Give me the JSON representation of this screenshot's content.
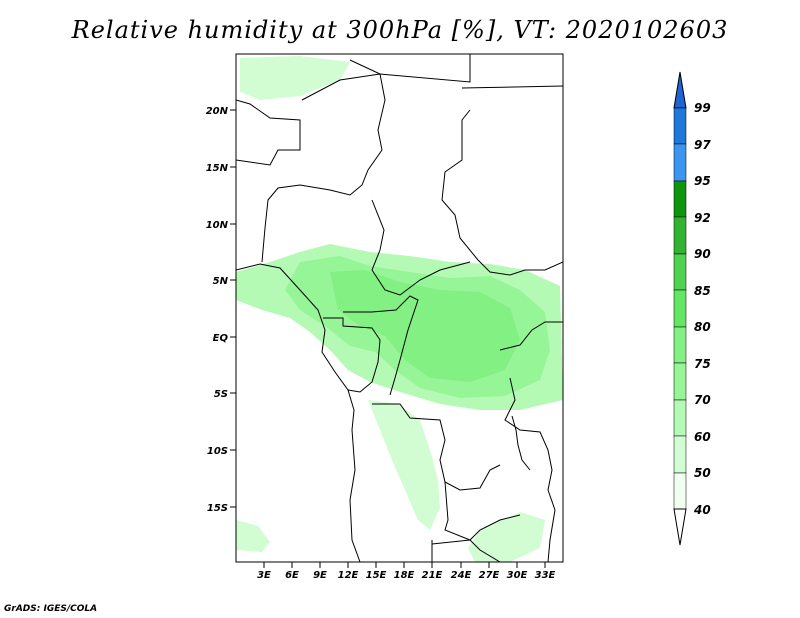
{
  "title": "Relative humidity at 300hPa [%], VT: 2020102603",
  "credit": "GrADS: IGES/COLA",
  "map": {
    "lat_labels": [
      "20N",
      "15N",
      "10N",
      "5N",
      "EQ",
      "5S",
      "10S",
      "15S"
    ],
    "lon_labels": [
      "3E",
      "6E",
      "9E",
      "12E",
      "15E",
      "18E",
      "21E",
      "24E",
      "27E",
      "30E",
      "33E"
    ]
  },
  "colorbar": {
    "unit": "%",
    "levels": [
      "99",
      "97",
      "95",
      "92",
      "90",
      "85",
      "80",
      "75",
      "70",
      "60",
      "50",
      "40"
    ],
    "colors": [
      "#1e64d2",
      "#1e78dc",
      "#3c96f0",
      "#0f960f",
      "#32b432",
      "#50d250",
      "#64e664",
      "#82f082",
      "#96f596",
      "#b4fab4",
      "#d2fcd2",
      "#f0fff0"
    ]
  },
  "field_colors": {
    "light": "#d2fcd2",
    "mid": "#b4fab4",
    "humid": "#96f596",
    "moist": "#82f082",
    "core": "#64e664"
  }
}
